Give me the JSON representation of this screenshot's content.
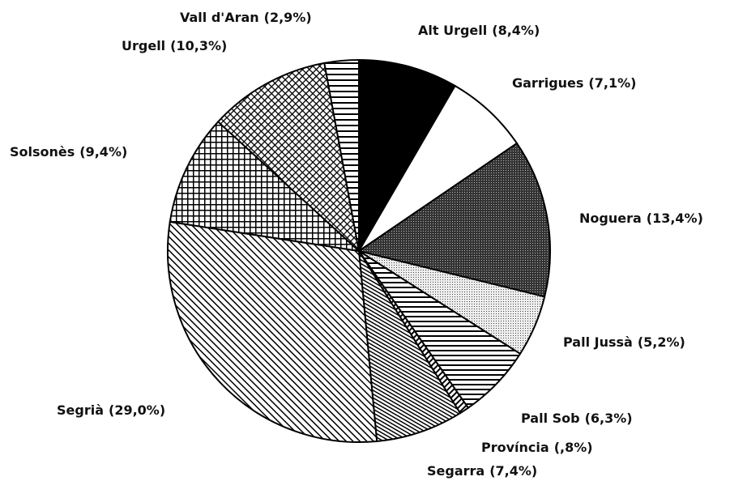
{
  "chart_data": {
    "type": "pie",
    "categories": [
      "Alt Urgell",
      "Garrigues",
      "Noguera",
      "Pall Jussà",
      "Pall Sob",
      "Província",
      "Segarra",
      "Segrià",
      "Solsonès",
      "Urgell",
      "Vall d'Aran"
    ],
    "values": [
      8.4,
      7.1,
      13.4,
      5.2,
      6.3,
      0.8,
      7.4,
      29.0,
      9.4,
      10.3,
      2.9
    ],
    "value_labels": [
      "(8,4%)",
      "(7,1%)",
      "(13,4%)",
      "(5,2%)",
      "(6,3%)",
      "(,8%)",
      "(7,4%)",
      "(29,0%)",
      "(9,4%)",
      "(10,3%)",
      "(2,9%)"
    ]
  }
}
